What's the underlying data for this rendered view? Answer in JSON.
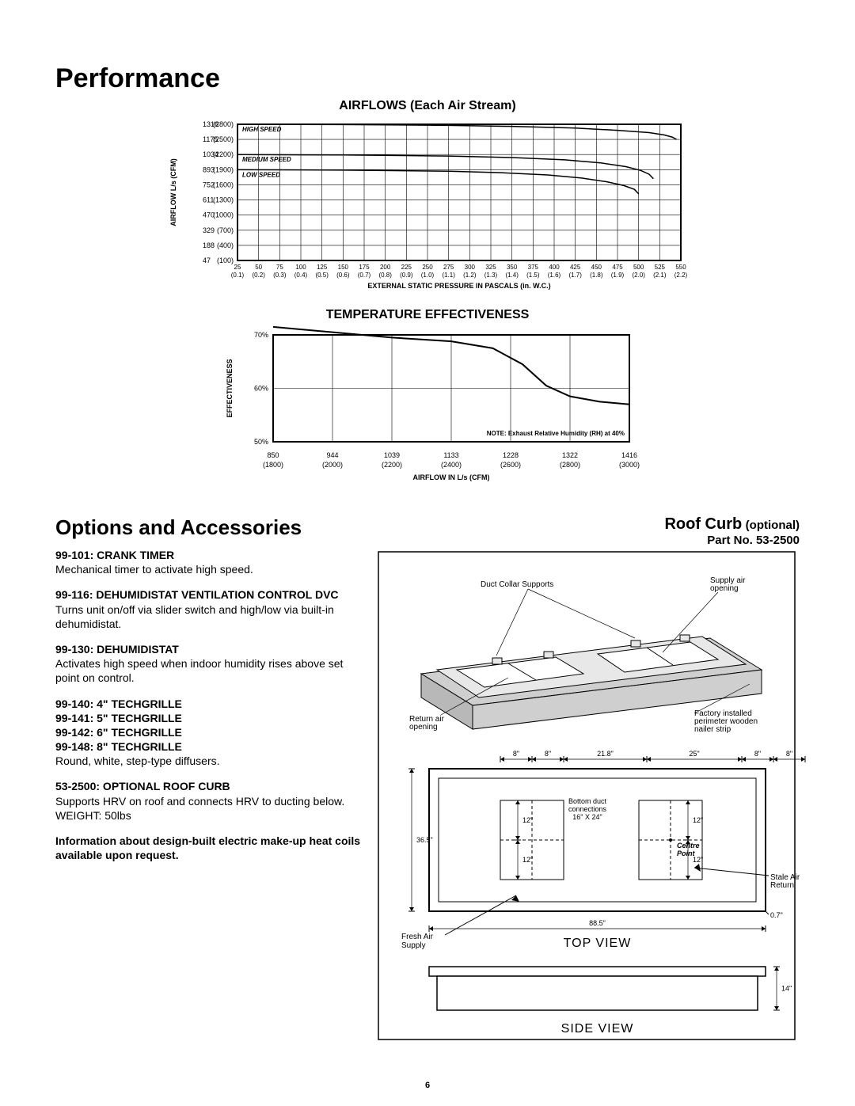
{
  "page": {
    "title": "Performance",
    "number": "6"
  },
  "airflow_chart": {
    "title": "AIRFLOWS (Each Air Stream)",
    "type": "line",
    "y_label": "AIRFLOW L/s (CFM)",
    "x_label": "EXTERNAL STATIC PRESSURE IN PASCALS (in. W.C.)",
    "y_ticks": [
      {
        "ls": "1316",
        "cfm": "(2800)"
      },
      {
        "ls": "1175",
        "cfm": "(2500)"
      },
      {
        "ls": "1034",
        "cfm": "(2200)"
      },
      {
        "ls": "893",
        "cfm": "(1900)"
      },
      {
        "ls": "752",
        "cfm": "(1600)"
      },
      {
        "ls": "611",
        "cfm": "(1300)"
      },
      {
        "ls": "470",
        "cfm": "(1000)"
      },
      {
        "ls": "329",
        "cfm": "(700)"
      },
      {
        "ls": "188",
        "cfm": "(400)"
      },
      {
        "ls": "47",
        "cfm": "(100)"
      }
    ],
    "x_ticks_top": [
      "25",
      "50",
      "75",
      "100",
      "125",
      "150",
      "175",
      "200",
      "225",
      "250",
      "275",
      "300",
      "325",
      "350",
      "375",
      "400",
      "425",
      "450",
      "475",
      "500",
      "525",
      "550"
    ],
    "x_ticks_bot": [
      "(0.1)",
      "(0.2)",
      "(0.3)",
      "(0.4)",
      "(0.5)",
      "(0.6)",
      "(0.7)",
      "(0.8)",
      "(0.9)",
      "(1.0)",
      "(1.1)",
      "(1.2)",
      "(1.3)",
      "(1.4)",
      "(1.5)",
      "(1.6)",
      "(1.7)",
      "(1.8)",
      "(1.9)",
      "(2.0)",
      "(2.1)",
      "(2.2)"
    ],
    "series": [
      {
        "name": "HIGH SPEED",
        "stroke": "#000000",
        "width": 1.5,
        "points": [
          [
            0,
            0
          ],
          [
            5,
            0.02
          ],
          [
            10,
            0.07
          ],
          [
            13,
            0.14
          ],
          [
            16,
            0.25
          ],
          [
            18,
            0.4
          ],
          [
            19.5,
            0.55
          ],
          [
            20.2,
            0.7
          ],
          [
            20.6,
            0.85
          ],
          [
            20.8,
            1.0
          ]
        ]
      },
      {
        "name": "MEDIUM SPEED",
        "stroke": "#000000",
        "width": 1.5,
        "points": [
          [
            0,
            2
          ],
          [
            5,
            2.03
          ],
          [
            10,
            2.1
          ],
          [
            13,
            2.2
          ],
          [
            15.5,
            2.35
          ],
          [
            17.2,
            2.55
          ],
          [
            18.4,
            2.8
          ],
          [
            19.1,
            3.05
          ],
          [
            19.5,
            3.3
          ],
          [
            19.7,
            3.6
          ]
        ]
      },
      {
        "name": "LOW SPEED",
        "stroke": "#000000",
        "width": 1.5,
        "points": [
          [
            0,
            3
          ],
          [
            5,
            3.03
          ],
          [
            10,
            3.1
          ],
          [
            12.5,
            3.2
          ],
          [
            14.7,
            3.35
          ],
          [
            16.3,
            3.55
          ],
          [
            17.5,
            3.8
          ],
          [
            18.3,
            4.05
          ],
          [
            18.8,
            4.3
          ],
          [
            19.0,
            4.6
          ]
        ]
      }
    ],
    "series_labels": [
      {
        "text": "HIGH SPEED",
        "row": 0
      },
      {
        "text": "MEDIUM SPEED",
        "row": 2
      },
      {
        "text": "LOW SPEED",
        "row": 3
      }
    ],
    "grid_color": "#000000",
    "background_color": "#ffffff",
    "plot_border_width": 2,
    "y_count": 10,
    "x_count": 22
  },
  "temp_chart": {
    "title": "TEMPERATURE EFFECTIVENESS",
    "type": "line",
    "y_label": "EFFECTIVENESS",
    "x_label": "AIRFLOW IN L/s (CFM)",
    "y_ticks": [
      "70%",
      "60%",
      "50%"
    ],
    "x_ticks_top": [
      "850",
      "944",
      "1039",
      "1133",
      "1228",
      "1322",
      "1416"
    ],
    "x_ticks_bot": [
      "(1800)",
      "(2000)",
      "(2200)",
      "(2400)",
      "(2600)",
      "(2800)",
      "(3000)"
    ],
    "note": "NOTE: Exhaust Relative Humidity (RH) at 40%",
    "series": [
      {
        "name": "eff",
        "stroke": "#000000",
        "width": 2,
        "points": [
          [
            0,
            -0.15
          ],
          [
            1,
            -0.05
          ],
          [
            2,
            0.05
          ],
          [
            3,
            0.12
          ],
          [
            3.7,
            0.25
          ],
          [
            4.2,
            0.55
          ],
          [
            4.6,
            0.95
          ],
          [
            5.0,
            1.15
          ],
          [
            5.5,
            1.25
          ],
          [
            6.0,
            1.3
          ]
        ]
      }
    ],
    "grid_color": "#000000",
    "background_color": "#ffffff",
    "plot_border_width": 2,
    "y_count": 3,
    "x_count": 7
  },
  "options": {
    "heading": "Options and Accessories",
    "items": [
      {
        "label": "99-101: CRANK TIMER",
        "desc": "Mechanical timer to activate high speed."
      },
      {
        "label": "99-116: DEHUMIDISTAT VENTILATION CONTROL DVC",
        "desc": "Turns unit on/off via slider switch and high/low via built-in dehumidistat."
      },
      {
        "label": "99-130: DEHUMIDISTAT",
        "desc": "Activates high speed when indoor humidity rises above set point on control."
      },
      {
        "label": "99-140: 4\" TECHGRILLE\n99-141: 5\" TECHGRILLE\n99-142: 6\" TECHGRILLE\n99-148: 8\" TECHGRILLE",
        "desc": "Round, white, step-type diffusers."
      },
      {
        "label": "53-2500: OPTIONAL ROOF CURB",
        "desc": "Supports HRV on roof and connects HRV to ducting below.\nWEIGHT: 50lbs"
      }
    ],
    "footer": "Information about design-built electric make-up heat coils available upon request."
  },
  "roof_curb": {
    "heading": "Roof Curb",
    "optional": "(optional)",
    "part": "Part No. 53-2500",
    "labels": {
      "duct_collar": "Duct Collar Supports",
      "supply_air": "Supply air opening",
      "return_air": "Return air opening",
      "factory": "Factory installed perimeter wooden nailer strip",
      "bottom_duct": "Bottom duct connections 16\" X 24\"",
      "centre_point": "Centre Point",
      "fresh_air": "Fresh Air Supply",
      "stale_air": "Stale Air Return",
      "top_view": "TOP VIEW",
      "side_view": "SIDE VIEW"
    },
    "dims": {
      "d8a": "8\"",
      "d8b": "8\"",
      "d218": "21.8\"",
      "d25": "25\"",
      "d8c": "8\"",
      "d8d": "8\"",
      "d365": "36.5\"",
      "d12a": "12\"",
      "d12b": "12\"",
      "d12c": "12\"",
      "d12d": "12\"",
      "d885": "88.5\"",
      "d07": "0.7\"",
      "d14": "14\""
    },
    "colors": {
      "stroke": "#000000",
      "fill_light": "#e8e8e8",
      "fill_mid": "#cfcfcf",
      "fill_dark": "#b8b8b8"
    }
  }
}
